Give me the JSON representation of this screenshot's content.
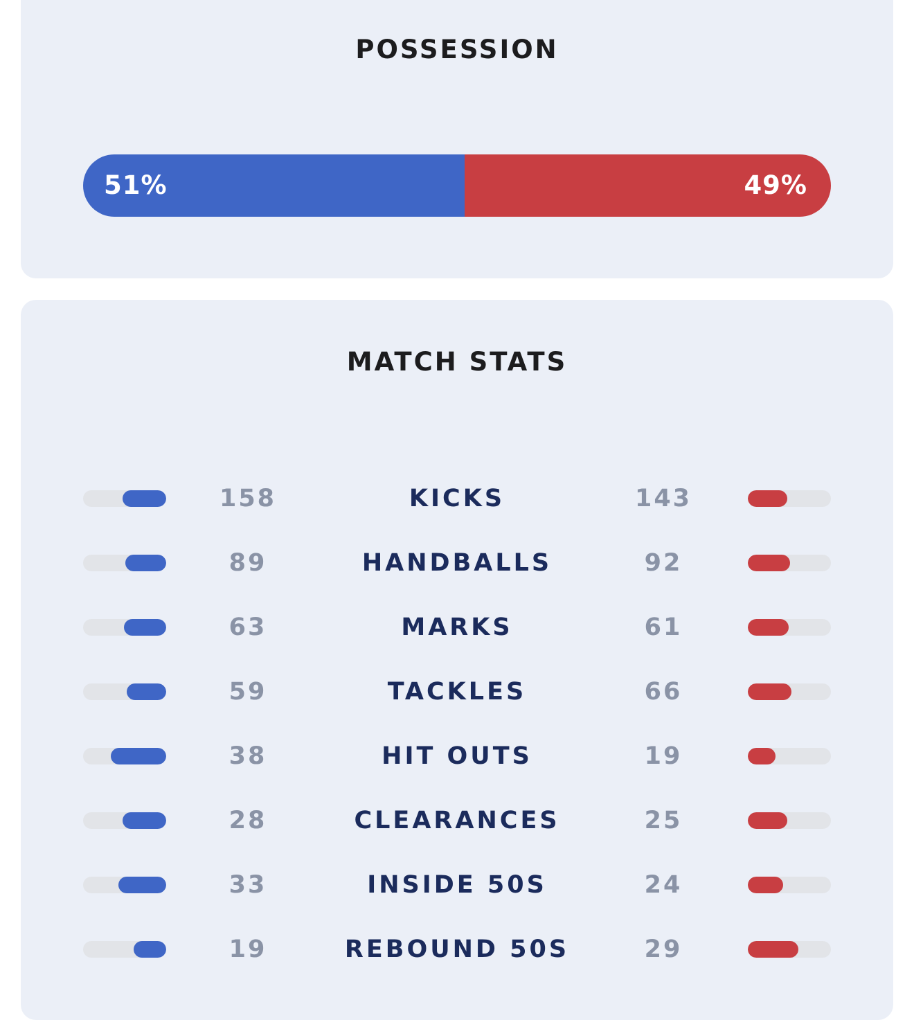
{
  "colors": {
    "home": "#3f66c6",
    "away": "#c83e42",
    "card_background": "#ebeff7",
    "track": "#e2e4e8",
    "stat_label": "#1b2b5c",
    "stat_number": "#8a93a6",
    "title": "#1c1c1e"
  },
  "possession": {
    "title": "POSSESSION",
    "home_percent": 51,
    "away_percent": 49,
    "home_label": "51%",
    "away_label": "49%"
  },
  "match_stats": {
    "title": "MATCH STATS",
    "rows": [
      {
        "label": "KICKS",
        "home": "158",
        "away": "143"
      },
      {
        "label": "HANDBALLS",
        "home": "89",
        "away": "92"
      },
      {
        "label": "MARKS",
        "home": "63",
        "away": "61"
      },
      {
        "label": "TACKLES",
        "home": "59",
        "away": "66"
      },
      {
        "label": "HIT OUTS",
        "home": "38",
        "away": "19"
      },
      {
        "label": "CLEARANCES",
        "home": "28",
        "away": "25"
      },
      {
        "label": "INSIDE 50S",
        "home": "33",
        "away": "24"
      },
      {
        "label": "REBOUND 50S",
        "home": "19",
        "away": "29"
      }
    ]
  }
}
